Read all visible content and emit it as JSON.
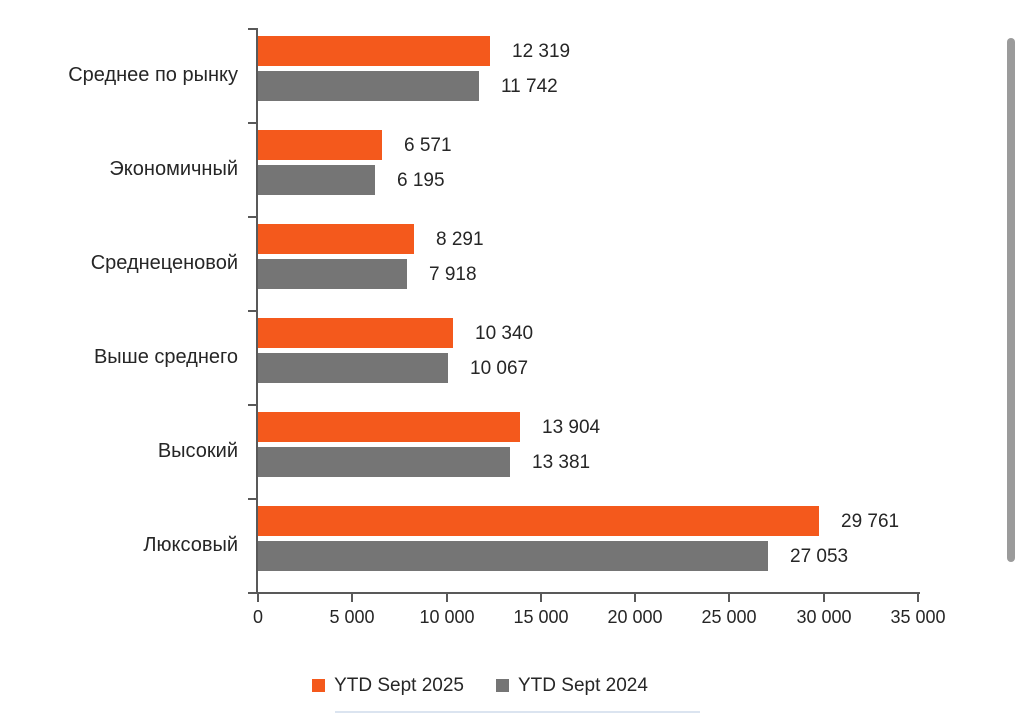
{
  "chart_data": {
    "type": "bar",
    "orientation": "horizontal",
    "title": "",
    "categories": [
      "Среднее по рынку",
      "Экономичный",
      "Среднеценовой",
      "Выше среднего",
      "Высокий",
      "Люксовый"
    ],
    "series": [
      {
        "name": "YTD Sept 2025",
        "color": "#F4591C",
        "values": [
          12319,
          6571,
          8291,
          10340,
          13904,
          29761
        ],
        "labels": [
          "12 319",
          "6 571",
          "8 291",
          "10 340",
          "13 904",
          "29 761"
        ]
      },
      {
        "name": "YTD Sept 2024",
        "color": "#757575",
        "values": [
          11742,
          6195,
          7918,
          10067,
          13381,
          27053
        ],
        "labels": [
          "11 742",
          "6 195",
          "7 918",
          "10 067",
          "13 381",
          "27 053"
        ]
      }
    ],
    "xlabel": "",
    "ylabel": "",
    "xlim": [
      0,
      35000
    ],
    "xticks": [
      0,
      5000,
      10000,
      15000,
      20000,
      25000,
      30000,
      35000
    ],
    "xtick_labels": [
      "0",
      "5 000",
      "10 000",
      "15 000",
      "20 000",
      "25 000",
      "30 000",
      "35 000"
    ],
    "grid": false,
    "legend_position": "bottom",
    "axis_color": "#595959",
    "text_color": "#262626"
  },
  "scrollbar": {
    "color": "#9b9b9b"
  }
}
